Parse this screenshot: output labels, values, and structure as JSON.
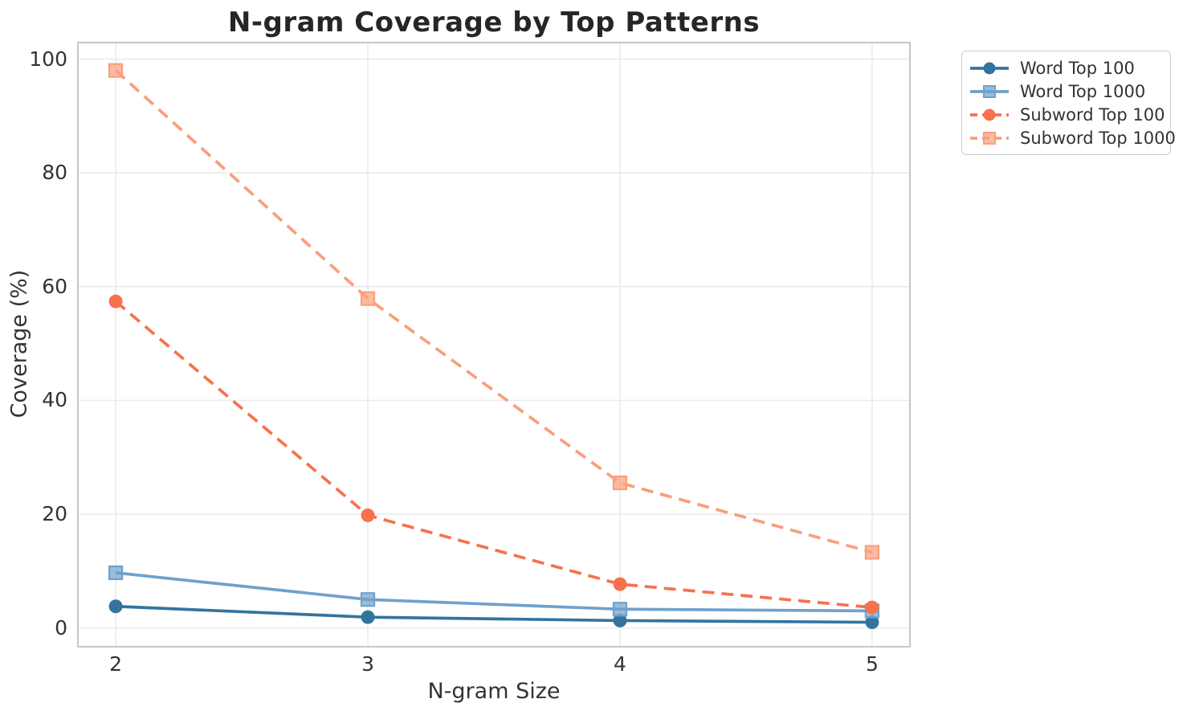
{
  "chart_data": {
    "type": "line",
    "title": "N-gram Coverage by Top Patterns",
    "xlabel": "N-gram Size",
    "ylabel": "Coverage (%)",
    "x": [
      2,
      3,
      4,
      5
    ],
    "xticklabels": [
      "2",
      "3",
      "4",
      "5"
    ],
    "yticks": [
      0,
      20,
      40,
      60,
      80,
      100
    ],
    "yticklabels": [
      "0",
      "20",
      "40",
      "60",
      "80",
      "100"
    ],
    "xlim": [
      1.85,
      5.15
    ],
    "ylim": [
      -3.3,
      102.9
    ],
    "grid": true,
    "legend_position": "upper right outside plot",
    "series": [
      {
        "name": "Word Top 100",
        "values": [
          3.8,
          1.9,
          1.3,
          1.0
        ],
        "color": "#33749F",
        "marker": "circle",
        "line_style": "solid"
      },
      {
        "name": "Word Top 1000",
        "values": [
          9.7,
          5.0,
          3.3,
          3.0
        ],
        "color": "#6FA1CC",
        "marker": "square",
        "line_style": "solid"
      },
      {
        "name": "Subword Top 100",
        "values": [
          57.4,
          19.8,
          7.7,
          3.6
        ],
        "color": "#F7714D",
        "marker": "circle",
        "line_style": "dashed"
      },
      {
        "name": "Subword Top 1000",
        "values": [
          98.0,
          57.9,
          25.5,
          13.3
        ],
        "color": "#FA9E7C",
        "marker": "square",
        "line_style": "dashed"
      }
    ],
    "style_colors": {
      "gridline": "#ebebeb",
      "spine": "#c7c7c7",
      "title_text": "#262626",
      "tick_text": "#333333"
    }
  }
}
